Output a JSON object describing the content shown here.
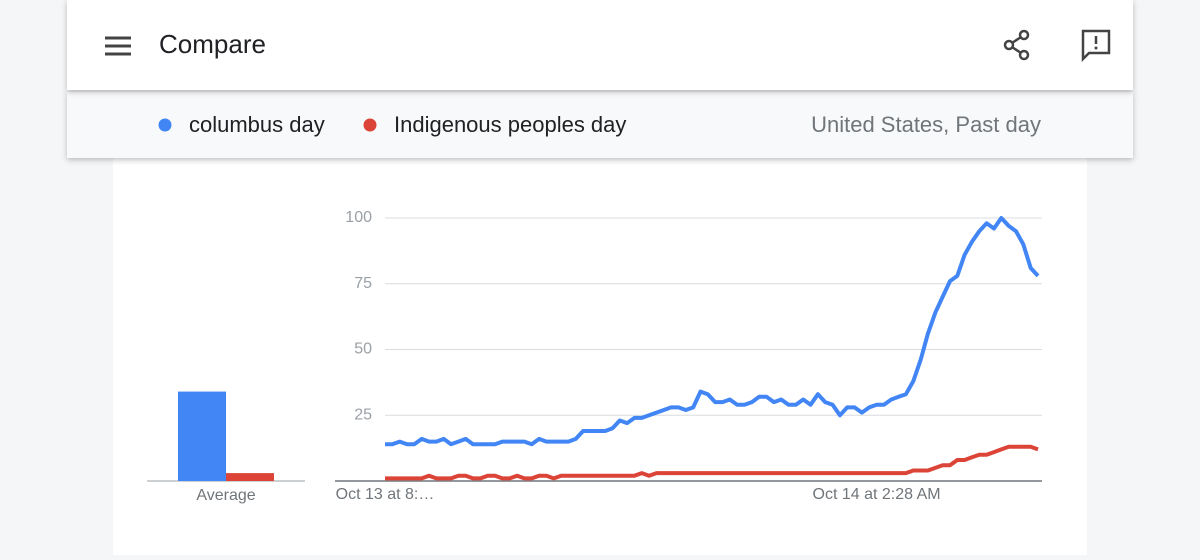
{
  "header": {
    "title": "Compare"
  },
  "scope": "United States, Past day",
  "chart_data": [
    {
      "type": "bar",
      "categories": [
        "Average"
      ],
      "series": [
        {
          "color": "#4285f4",
          "values": [
            34
          ]
        },
        {
          "color": "#db4437",
          "values": [
            3
          ]
        }
      ],
      "ylim": [
        0,
        100
      ]
    },
    {
      "type": "line",
      "categories": [
        "Oct 13 at 8:…",
        null,
        null,
        null,
        null,
        null,
        null,
        null,
        null,
        null,
        null,
        null,
        null,
        null,
        null,
        null,
        null,
        null,
        null,
        null,
        null,
        null,
        null,
        null,
        null,
        null,
        null,
        null,
        null,
        null,
        null,
        null,
        null,
        null,
        null,
        null,
        null,
        null,
        null,
        null,
        null,
        null,
        null,
        null,
        null,
        null,
        null,
        null,
        null,
        null,
        null,
        null,
        null,
        null,
        null,
        null,
        null,
        null,
        null,
        null,
        null,
        null,
        null,
        null,
        null,
        null,
        null,
        "Oct 14 at 2:28 AM",
        null,
        null,
        null,
        null,
        null,
        null,
        null,
        null,
        null,
        null,
        null,
        null,
        null,
        null,
        null,
        null,
        null,
        null,
        null,
        null,
        null,
        null
      ],
      "series": [
        {
          "name": "columbus day",
          "color": "#4285f4",
          "values": [
            14,
            14,
            15,
            14,
            14,
            16,
            15,
            15,
            16,
            14,
            15,
            16,
            14,
            14,
            14,
            14,
            15,
            15,
            15,
            15,
            14,
            16,
            15,
            15,
            15,
            15,
            16,
            19,
            19,
            19,
            19,
            20,
            23,
            22,
            24,
            24,
            25,
            26,
            27,
            28,
            28,
            27,
            28,
            34,
            33,
            30,
            30,
            31,
            29,
            29,
            30,
            32,
            32,
            30,
            31,
            29,
            29,
            31,
            29,
            33,
            30,
            29,
            25,
            28,
            28,
            26,
            28,
            29,
            29,
            31,
            32,
            33,
            38,
            46,
            56,
            64,
            70,
            76,
            78,
            86,
            91,
            95,
            98,
            96,
            100,
            97,
            95,
            90,
            81,
            78
          ]
        },
        {
          "name": "Indigenous peoples day",
          "color": "#db4437",
          "values": [
            1,
            1,
            1,
            1,
            1,
            1,
            2,
            1,
            1,
            1,
            2,
            2,
            1,
            1,
            2,
            2,
            1,
            1,
            2,
            1,
            1,
            2,
            2,
            1,
            2,
            2,
            2,
            2,
            2,
            2,
            2,
            2,
            2,
            2,
            2,
            3,
            2,
            3,
            3,
            3,
            3,
            3,
            3,
            3,
            3,
            3,
            3,
            3,
            3,
            3,
            3,
            3,
            3,
            3,
            3,
            3,
            3,
            3,
            3,
            3,
            3,
            3,
            3,
            3,
            3,
            3,
            3,
            3,
            3,
            3,
            3,
            3,
            4,
            4,
            4,
            5,
            6,
            6,
            8,
            8,
            9,
            10,
            10,
            11,
            12,
            13,
            13,
            13,
            13,
            12
          ]
        }
      ],
      "ylim": [
        0,
        100
      ],
      "yticks": [
        25,
        50,
        75,
        100
      ],
      "grid": true
    }
  ]
}
